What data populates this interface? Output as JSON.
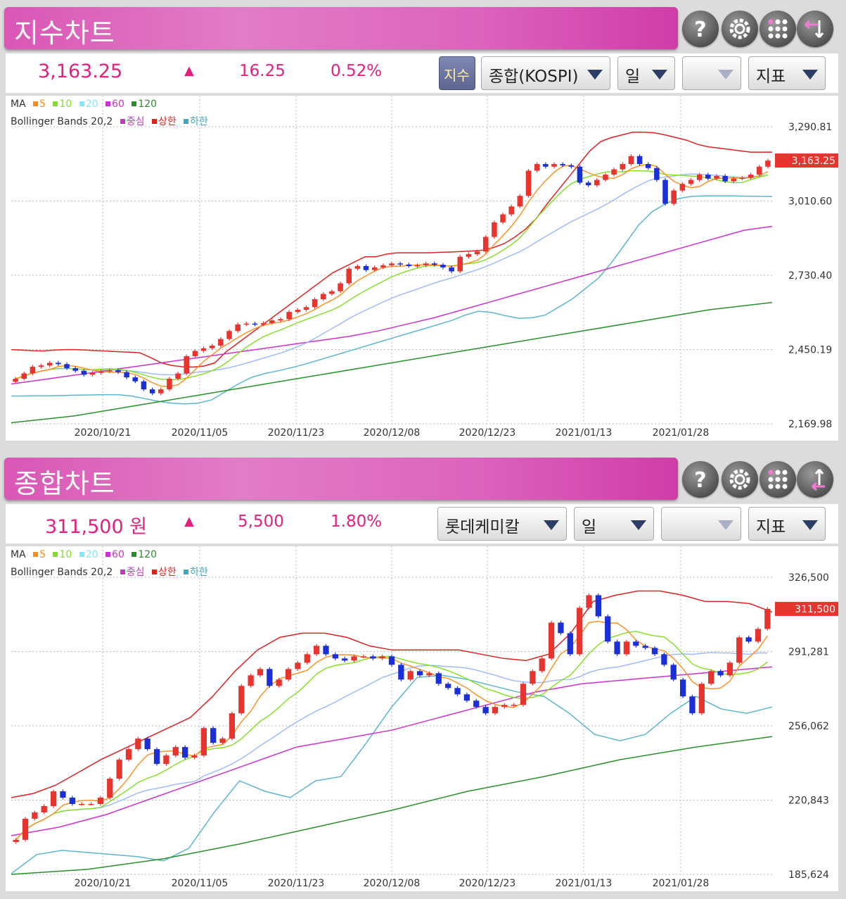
{
  "panels": [
    {
      "title": "지수차트",
      "price": "3,163.25",
      "arrow": "▲",
      "change": "16.25",
      "change_pct": "0.52%",
      "index_toggle": "지수",
      "selects": [
        "종합(KOSPI)",
        "일",
        "",
        "지표"
      ],
      "current_label": "3,163.25"
    },
    {
      "title": "종합차트",
      "price": "311,500 원",
      "arrow": "▲",
      "change": "5,500",
      "change_pct": "1.80%",
      "selects": [
        "롯데케미칼",
        "일",
        "",
        "지표"
      ],
      "current_label": "311,500"
    }
  ],
  "legend": {
    "ma_label": "MA",
    "ma_items": [
      {
        "label": "5",
        "color": "#ff8c1a"
      },
      {
        "label": "10",
        "color": "#7fe01f"
      },
      {
        "label": "20",
        "color": "#7fe8ff"
      },
      {
        "label": "60",
        "color": "#cc33cc"
      },
      {
        "label": "120",
        "color": "#2a8f2a"
      }
    ],
    "bb_label": "Bollinger Bands 20,2",
    "bb_items": [
      {
        "label": "중심",
        "color": "#cc33cc"
      },
      {
        "label": "상한",
        "color": "#dd2222"
      },
      {
        "label": "하한",
        "color": "#3aa6c8"
      }
    ]
  },
  "icons": [
    "help-icon",
    "gear-icon",
    "grid-icon",
    "swap-icon"
  ],
  "colors": {
    "up": "#e8342f",
    "down": "#1b2fd6",
    "accent": "#e4207f",
    "title_gradient": "#dd63bd"
  },
  "chart_data": [
    {
      "type": "candlestick",
      "name": "KOSPI 지수 일봉",
      "ylim": [
        2169.98,
        3290.81
      ],
      "y_ticks": [
        "3,290.81",
        "3,010.60",
        "2,730.40",
        "2,450.19",
        "2,169.98"
      ],
      "x_ticks": [
        "2020/10/21",
        "2020/11/05",
        "2020/11/23",
        "2020/12/08",
        "2020/12/23",
        "2021/01/13",
        "2021/01/28"
      ],
      "grid": true,
      "last_value": 3163.25,
      "close": [
        2340,
        2360,
        2385,
        2390,
        2400,
        2395,
        2380,
        2370,
        2355,
        2362,
        2368,
        2372,
        2365,
        2345,
        2330,
        2300,
        2285,
        2300,
        2340,
        2360,
        2425,
        2445,
        2455,
        2465,
        2490,
        2520,
        2545,
        2548,
        2545,
        2550,
        2560,
        2565,
        2592,
        2600,
        2610,
        2640,
        2660,
        2670,
        2700,
        2755,
        2765,
        2750,
        2760,
        2768,
        2775,
        2771,
        2765,
        2768,
        2775,
        2770,
        2760,
        2745,
        2800,
        2810,
        2820,
        2875,
        2930,
        2960,
        2990,
        3030,
        3125,
        3150,
        3140,
        3150,
        3145,
        3140,
        3080,
        3070,
        3090,
        3110,
        3130,
        3150,
        3180,
        3150,
        3135,
        3090,
        3000,
        3050,
        3075,
        3090,
        3110,
        3095,
        3105,
        3085,
        3095,
        3098,
        3110,
        3140,
        3163
      ],
      "series": [
        {
          "name": "Bollinger 상한",
          "values": [
            2450,
            2448,
            2446,
            2445,
            2448,
            2450,
            2450,
            2448,
            2446,
            2444,
            2442,
            2440,
            2438,
            2420,
            2400,
            2390,
            2385,
            2384,
            2388,
            2400,
            2440,
            2470,
            2500,
            2530,
            2560,
            2590,
            2620,
            2650,
            2680,
            2710,
            2740,
            2760,
            2780,
            2800,
            2800,
            2810,
            2815,
            2815,
            2815,
            2815,
            2817,
            2818,
            2820,
            2822,
            2825,
            2835,
            2850,
            2875,
            2905,
            2945,
            3000,
            3050,
            3100,
            3150,
            3200,
            3235,
            3250,
            3260,
            3270,
            3270,
            3268,
            3260,
            3250,
            3240,
            3225,
            3215,
            3210,
            3205,
            3200,
            3195,
            3195,
            3195
          ]
        },
        {
          "name": "Bollinger 하한",
          "values": [
            2275,
            2275,
            2276,
            2276,
            2277,
            2278,
            2279,
            2280,
            2280,
            2275,
            2265,
            2255,
            2248,
            2245,
            2248,
            2260,
            2290,
            2320,
            2345,
            2360,
            2370,
            2382,
            2395,
            2410,
            2425,
            2440,
            2455,
            2470,
            2485,
            2500,
            2515,
            2530,
            2545,
            2560,
            2580,
            2595,
            2590,
            2578,
            2568,
            2570,
            2580,
            2610,
            2640,
            2680,
            2720,
            2780,
            2850,
            2920,
            2970,
            3000,
            3020,
            3028,
            3030,
            3030,
            3030,
            3029,
            3028,
            3027
          ]
        },
        {
          "name": "MA 60 (중심)",
          "values": [
            2320,
            2335,
            2350,
            2365,
            2380,
            2395,
            2410,
            2425,
            2440,
            2455,
            2470,
            2485,
            2500,
            2520,
            2545,
            2570,
            2600,
            2630,
            2660,
            2690,
            2720,
            2750,
            2780,
            2810,
            2840,
            2870,
            2900,
            2915
          ]
        },
        {
          "name": "MA 120",
          "values": [
            2174,
            2200,
            2240,
            2280,
            2320,
            2360,
            2400,
            2440,
            2480,
            2520,
            2560,
            2600,
            2628
          ]
        }
      ]
    },
    {
      "type": "candlestick",
      "name": "롯데케미칼 일봉",
      "ylim": [
        185624,
        326500
      ],
      "y_ticks": [
        "326,500",
        "291,281",
        "256,062",
        "220,843",
        "185,624"
      ],
      "x_ticks": [
        "2020/10/21",
        "2020/11/05",
        "2020/11/23",
        "2020/12/08",
        "2020/12/23",
        "2021/01/13",
        "2021/01/28"
      ],
      "grid": true,
      "last_value": 311500,
      "close": [
        202000,
        212000,
        215000,
        218000,
        225000,
        222000,
        219000,
        219000,
        219000,
        222000,
        231000,
        240000,
        245000,
        250000,
        245000,
        238000,
        242000,
        246000,
        241000,
        242000,
        255000,
        248000,
        250000,
        262000,
        275000,
        280000,
        283000,
        275000,
        278000,
        283000,
        286000,
        290000,
        294000,
        290000,
        288000,
        287000,
        289000,
        289000,
        288000,
        289000,
        285000,
        278000,
        282000,
        280000,
        281000,
        276000,
        274000,
        271000,
        268000,
        265000,
        262000,
        265000,
        266000,
        266000,
        276000,
        282000,
        288000,
        305000,
        300000,
        290000,
        312000,
        318000,
        308000,
        296000,
        290000,
        296000,
        294000,
        293000,
        290000,
        285000,
        278000,
        270000,
        262000,
        276000,
        282000,
        280000,
        286000,
        298000,
        296000,
        302000,
        311500
      ],
      "series": [
        {
          "name": "Bollinger 상한",
          "values": [
            222000,
            224000,
            228000,
            234000,
            240000,
            245000,
            250000,
            255000,
            260000,
            270000,
            282000,
            292000,
            298000,
            300000,
            300000,
            298000,
            294000,
            292000,
            292000,
            292000,
            292000,
            290000,
            288000,
            287000,
            290000,
            300000,
            315000,
            318000,
            320000,
            320000,
            318000,
            315000,
            315000,
            314000,
            310000
          ]
        },
        {
          "name": "Bollinger 하한",
          "values": [
            186000,
            195000,
            197000,
            196000,
            195000,
            194000,
            192000,
            198000,
            215000,
            230000,
            225000,
            222000,
            230000,
            232000,
            248000,
            265000,
            279000,
            280000,
            278000,
            275000,
            272000,
            270000,
            262000,
            252000,
            249000,
            252000,
            262000,
            270000,
            264000,
            262000,
            265000
          ]
        },
        {
          "name": "MA 60 (중심)",
          "values": [
            204000,
            208000,
            214000,
            222000,
            230000,
            238000,
            246000,
            250000,
            254000,
            260000,
            266000,
            272000,
            276000,
            278000,
            280000,
            282000,
            284000
          ]
        },
        {
          "name": "MA 120",
          "values": [
            185624,
            188000,
            193000,
            200000,
            208000,
            216000,
            225000,
            232000,
            240000,
            246000,
            251000
          ]
        }
      ]
    }
  ]
}
